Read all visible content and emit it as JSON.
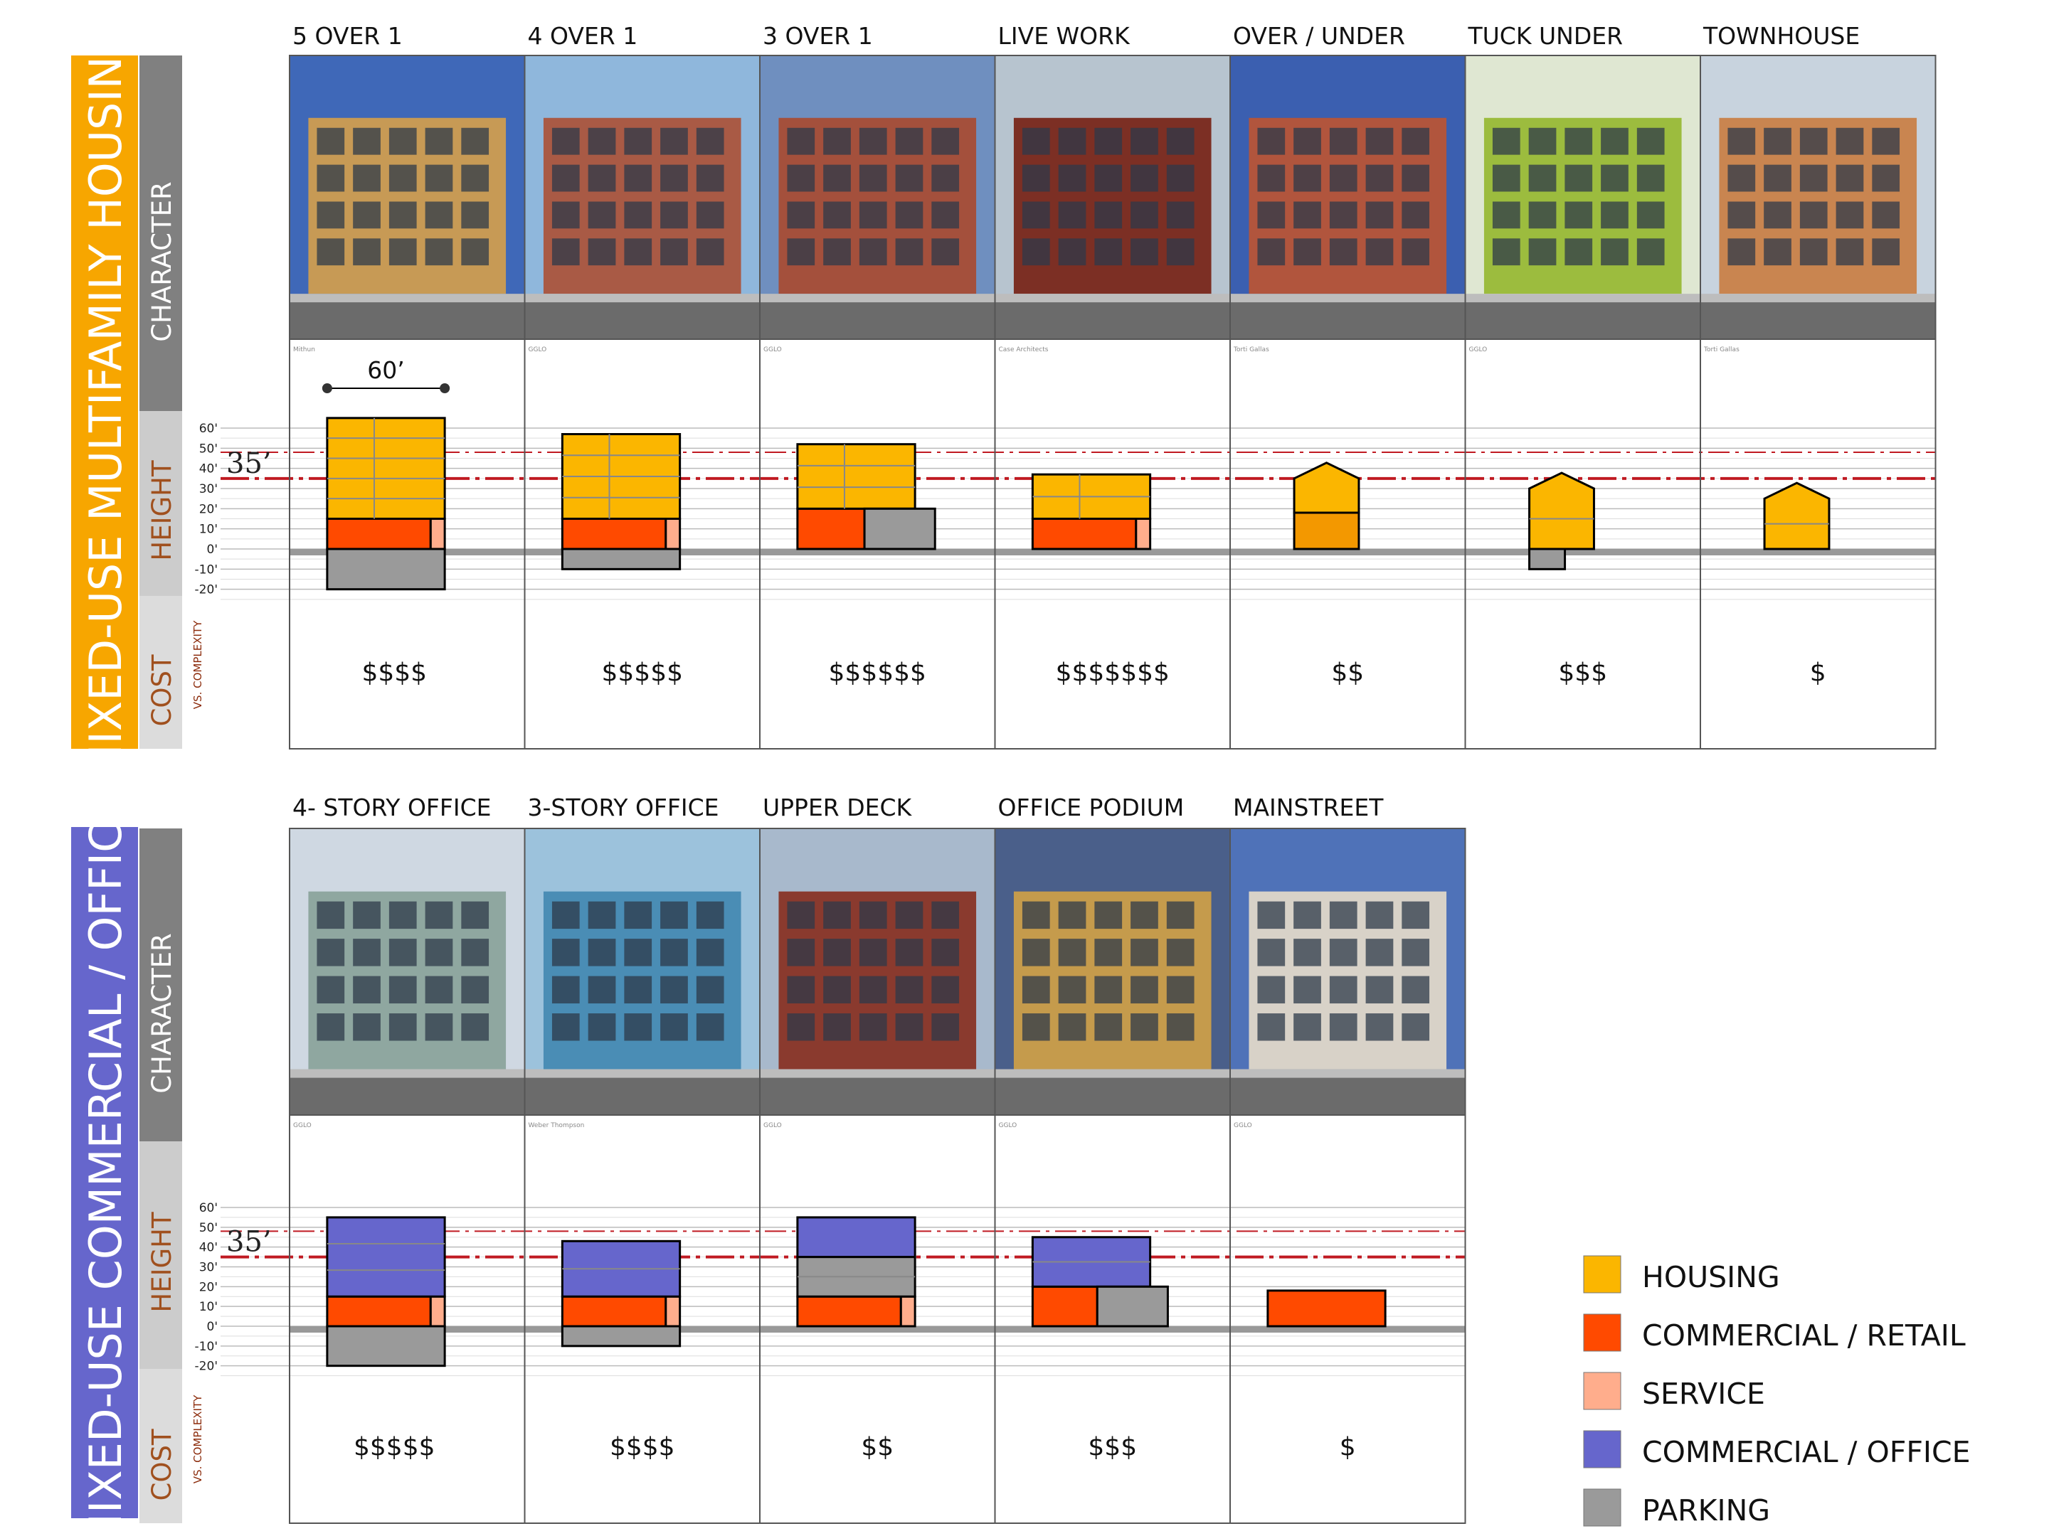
{
  "sections": [
    {
      "id": "housing",
      "title": "MIXED-USE MULTIFAMILY HOUSING",
      "accent": "#f7a600",
      "rows": {
        "character": "CHARACTER",
        "height": "HEIGHT",
        "cost": "COST",
        "cost_note": "VS. COMPLEXITY"
      },
      "scale_ticks": [
        "60'",
        "50'",
        "40'",
        "30'",
        "20'",
        "10'",
        "0'",
        "-10'",
        "-20'"
      ],
      "height_marker": "35’",
      "dimension_label": "60’",
      "columns": [
        {
          "title": "5 OVER 1",
          "credit": "Mithun",
          "cost": "$$$$",
          "photo": "five-over-one-building-photo",
          "sky": "#3f68b8",
          "bldg": "#c79a55",
          "blocks": [
            {
              "type": "parking",
              "from": -20,
              "to": 0,
              "w": 1
            },
            {
              "type": "retail",
              "from": 0,
              "to": 15,
              "w": 0.88
            },
            {
              "type": "service",
              "from": 0,
              "to": 15,
              "w": 0.12
            },
            {
              "type": "housing",
              "from": 15,
              "to": 65,
              "w": 1,
              "rows": 5
            }
          ]
        },
        {
          "title": "4 OVER 1",
          "credit": "GGLO",
          "cost": "$$$$$",
          "photo": "four-over-one-building-photo",
          "sky": "#8fb7dc",
          "bldg": "#a95a45",
          "blocks": [
            {
              "type": "parking",
              "from": -10,
              "to": 0,
              "w": 1
            },
            {
              "type": "retail",
              "from": 0,
              "to": 15,
              "w": 0.88
            },
            {
              "type": "service",
              "from": 0,
              "to": 15,
              "w": 0.12
            },
            {
              "type": "housing",
              "from": 15,
              "to": 57,
              "w": 1,
              "rows": 4
            }
          ]
        },
        {
          "title": "3 OVER 1",
          "credit": "GGLO",
          "cost": "$$$$$$",
          "photo": "three-over-one-building-photo",
          "sky": "#6f8fbf",
          "bldg": "#a4503c",
          "blocks": [
            {
              "type": "retail",
              "from": 0,
              "to": 20,
              "w": 0.57
            },
            {
              "type": "housing",
              "from": 20,
              "to": 52,
              "w": 1,
              "rows": 3
            }
          ],
          "extra": "parking-side"
        },
        {
          "title": "LIVE WORK",
          "credit": "Case Architects",
          "cost": "$$$$$$$",
          "photo": "live-work-building-photo",
          "sky": "#b7c4cf",
          "bldg": "#7c2f24",
          "blocks": [
            {
              "type": "retail",
              "from": 0,
              "to": 15,
              "w": 0.88
            },
            {
              "type": "service",
              "from": 0,
              "to": 15,
              "w": 0.12
            },
            {
              "type": "housing",
              "from": 15,
              "to": 37,
              "w": 1,
              "rows": 2
            }
          ]
        },
        {
          "title": "OVER / UNDER",
          "credit": "Torti Gallas",
          "cost": "$$",
          "photo": "over-under-townhouse-photo",
          "sky": "#3b5fb0",
          "bldg": "#b1553d",
          "blocks": [
            {
              "type": "housing-dark",
              "from": 0,
              "to": 18,
              "w": 1
            },
            {
              "type": "housing",
              "from": 18,
              "to": 35,
              "w": 1,
              "roof": true
            }
          ]
        },
        {
          "title": "TUCK UNDER",
          "credit": "GGLO",
          "cost": "$$$",
          "photo": "tuck-under-housing-photo",
          "sky": "#dfe7d2",
          "bldg": "#9cbc3e",
          "blocks": [
            {
              "type": "parking",
              "from": -10,
              "to": 0,
              "w": 0.55
            },
            {
              "type": "housing",
              "from": 0,
              "to": 30,
              "w": 1,
              "roof": true,
              "rows": 2
            }
          ]
        },
        {
          "title": "TOWNHOUSE",
          "credit": "Torti Gallas",
          "cost": "$",
          "photo": "townhouse-photo",
          "sky": "#c8d3de",
          "bldg": "#c98550",
          "blocks": [
            {
              "type": "housing",
              "from": 0,
              "to": 25,
              "w": 1,
              "roof": true,
              "rows": 2
            }
          ]
        }
      ]
    },
    {
      "id": "office",
      "title": "MIXED-USE COMMERCIAL / OFFICE",
      "accent": "#6666cc",
      "rows": {
        "character": "CHARACTER",
        "height": "HEIGHT",
        "cost": "COST",
        "cost_note": "VS. COMPLEXITY"
      },
      "scale_ticks": [
        "60'",
        "50'",
        "40'",
        "30'",
        "20'",
        "10'",
        "0'",
        "-10'",
        "-20'"
      ],
      "height_marker": "35’",
      "columns": [
        {
          "title": "4- STORY OFFICE",
          "credit": "GGLO",
          "cost": "$$$$$",
          "photo": "four-story-office-photo",
          "sky": "#cfd8e2",
          "bldg": "#8fa7a0",
          "blocks": [
            {
              "type": "parking",
              "from": -20,
              "to": 0,
              "w": 1
            },
            {
              "type": "retail",
              "from": 0,
              "to": 15,
              "w": 0.88
            },
            {
              "type": "service",
              "from": 0,
              "to": 15,
              "w": 0.12
            },
            {
              "type": "office",
              "from": 15,
              "to": 55,
              "w": 1,
              "rows": 3
            }
          ]
        },
        {
          "title": "3-STORY OFFICE",
          "credit": "Weber Thompson",
          "cost": "$$$$",
          "photo": "three-story-office-photo",
          "sky": "#9cc2dc",
          "bldg": "#4a8db5",
          "blocks": [
            {
              "type": "parking",
              "from": -10,
              "to": 0,
              "w": 1
            },
            {
              "type": "retail",
              "from": 0,
              "to": 15,
              "w": 0.88
            },
            {
              "type": "service",
              "from": 0,
              "to": 15,
              "w": 0.12
            },
            {
              "type": "office",
              "from": 15,
              "to": 43,
              "w": 1,
              "rows": 2
            }
          ]
        },
        {
          "title": "UPPER DECK",
          "credit": "GGLO",
          "cost": "$$",
          "photo": "upper-deck-streetcar-photo",
          "sky": "#a8b9cc",
          "bldg": "#8a3a2e",
          "blocks": [
            {
              "type": "retail",
              "from": 0,
              "to": 15,
              "w": 0.88
            },
            {
              "type": "service",
              "from": 0,
              "to": 15,
              "w": 0.12
            },
            {
              "type": "parking-mid",
              "from": 15,
              "to": 35,
              "w": 1,
              "rows": 2
            },
            {
              "type": "office",
              "from": 35,
              "to": 55,
              "w": 1
            }
          ]
        },
        {
          "title": "OFFICE PODIUM",
          "credit": "GGLO",
          "cost": "$$$",
          "photo": "office-podium-photo",
          "sky": "#4a5f8a",
          "bldg": "#c59b4c",
          "blocks": [
            {
              "type": "retail",
              "from": 0,
              "to": 20,
              "w": 0.55
            },
            {
              "type": "office",
              "from": 20,
              "to": 45,
              "w": 1,
              "rows": 2
            }
          ],
          "extra": "parking-side"
        },
        {
          "title": "MAINSTREET",
          "credit": "GGLO",
          "cost": "$",
          "photo": "mainstreet-retail-photo",
          "sky": "#4f72b8",
          "bldg": "#d8d2c8",
          "blocks": [
            {
              "type": "retail",
              "from": 0,
              "to": 18,
              "w": 1
            }
          ]
        }
      ]
    }
  ],
  "legend": [
    {
      "label": "HOUSING",
      "color": "#fbb600"
    },
    {
      "label": "COMMERCIAL / RETAIL",
      "color": "#ff4a00"
    },
    {
      "label": "SERVICE",
      "color": "#ffad8c"
    },
    {
      "label": "COMMERCIAL / OFFICE",
      "color": "#6666cc"
    },
    {
      "label": "PARKING",
      "color": "#9a9a9a"
    }
  ],
  "colors": {
    "housing": "#fbb600",
    "housing_dark": "#f39800",
    "retail": "#ff4a00",
    "service": "#ffad8c",
    "office": "#6666cc",
    "parking": "#9a9a9a",
    "height_line": "#c01a22",
    "tab_dark": "#808080",
    "tab_light": "#cccccc",
    "tab_lighter": "#dcdcdc",
    "cost_text": "#a0501e"
  }
}
